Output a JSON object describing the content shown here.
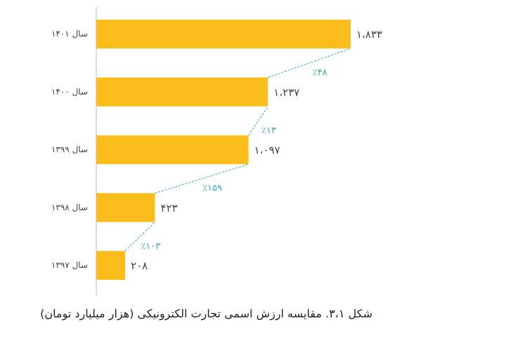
{
  "chart_data": {
    "type": "hbar",
    "caption": "شکل ۳،۱. مقایسه ارزش اسمی تجارت الکترونیکی (هزار میلیارد تومان)",
    "categories": [
      "سال ۱۴۰۱",
      "سال ۱۴۰۰",
      "سال ۱۳۹۹",
      "سال ۱۳۹۸",
      "سال ۱۳۹۷"
    ],
    "values": [
      1833,
      1237,
      1097,
      423,
      208
    ],
    "value_labels": [
      "۱،۸۳۳",
      "۱،۲۳۷",
      "۱،۰۹۷",
      "۴۲۳",
      "۲۰۸"
    ],
    "color": "#fbbd1c",
    "growth": {
      "values": [
        48,
        13,
        159,
        103
      ],
      "value_labels": [
        "٪۴۸",
        "٪۱۳",
        "٪۱۵۹",
        "٪۱۰۳"
      ],
      "color": "#3aa7c4"
    }
  }
}
